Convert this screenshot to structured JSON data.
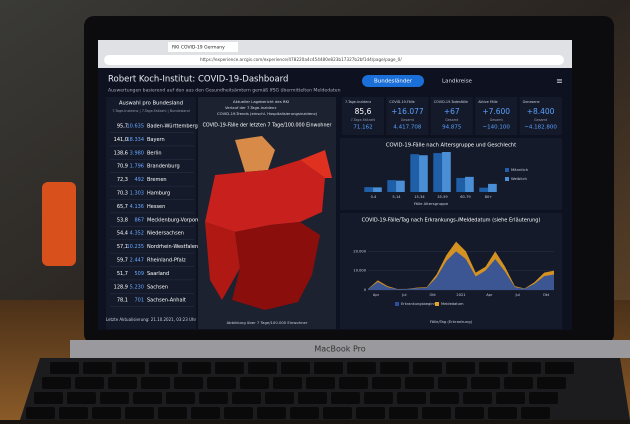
{
  "browser": {
    "tab": "RKI COVID-19 Germany",
    "url": "https://experience.arcgis.com/experience/478220a4c454480e823b17327b2bf1d4/page/page_0/"
  },
  "header": {
    "title": "Robert Koch-Institut: COVID-19-Dashboard",
    "subtitle": "Auswertungen basierend auf den aus den Gesundheitsämtern gemäß IfSG übermittelten Meldedaten",
    "buttons": [
      "Bundesländer",
      "Landkreise"
    ]
  },
  "states": {
    "title": "Auswahl pro Bundesland",
    "subtitle": "7-Tage-Inzidenz | 7-Tage-Fallzahl | Bundesland",
    "rows": [
      [
        "95,7",
        "10.635",
        "Baden-Württemberg"
      ],
      [
        "141,0",
        "18.334",
        "Bayern"
      ],
      [
        "138,6",
        "3.980",
        "Berlin"
      ],
      [
        "70,9",
        "1.796",
        "Brandenburg"
      ],
      [
        "72,3",
        "492",
        "Bremen"
      ],
      [
        "70,3",
        "1.303",
        "Hamburg"
      ],
      [
        "65,7",
        "4.136",
        "Hessen"
      ],
      [
        "53,8",
        "867",
        "Mecklenburg-Vorpommern"
      ],
      [
        "54,4",
        "4.352",
        "Niedersachsen"
      ],
      [
        "57,1",
        "10.235",
        "Nordrhein-Westfalen"
      ],
      [
        "59,7",
        "2.447",
        "Rheinland-Pfalz"
      ],
      [
        "51,7",
        "509",
        "Saarland"
      ],
      [
        "128,9",
        "5.230",
        "Sachsen"
      ],
      [
        "78,1",
        "701",
        "Sachsen-Anhalt"
      ]
    ],
    "footer": "Letzte Aktualisierung: 21.10.2021, 03:23 Uhr"
  },
  "map": {
    "options": [
      "Aktueller Lagebericht des RKI",
      "Verlauf der 7-Tage-Inzidenz",
      "COVID-19-Trends (einschl. Hospitalisierungsinzidenz)"
    ],
    "title": "COVID-19-Fälle der letzten 7 Tage/100.000 Einwohner",
    "footer": "Abbildung über 7 Tage/100.000 Einwohner"
  },
  "kpis": [
    {
      "label": "7-Tage-Inzidenz",
      "value": "85,6",
      "sub": "7-Tage-Fallzahl",
      "total": "71.162"
    },
    {
      "label": "COVID-19-Fälle",
      "value": "+16.077",
      "sub": "Gesamt",
      "total": "4.417.708"
    },
    {
      "label": "COVID-19-Todesfälle",
      "value": "+67",
      "sub": "Gesamt",
      "total": "94.875"
    },
    {
      "label": "Aktive Fälle",
      "value": "+7.600",
      "sub": "Gesamt",
      "total": "~140.100"
    },
    {
      "label": "Genesene",
      "value": "+8.400",
      "sub": "Gesamt",
      "total": "~4.182.800"
    }
  ],
  "chart_data": [
    {
      "type": "bar",
      "title": "COVID-19-Fälle nach Altersgruppe und Geschlecht",
      "x_label": "Fälle Altersgruppe",
      "categories": [
        "0-4",
        "5-14",
        "15-34",
        "35-59",
        "60-79",
        "80+"
      ],
      "series": [
        {
          "name": "Männlich",
          "color": "#1f5fa8",
          "values": [
            90000,
            220000,
            700000,
            720000,
            260000,
            80000
          ]
        },
        {
          "name": "Weiblich",
          "color": "#4a8fd6",
          "values": [
            85000,
            210000,
            680000,
            740000,
            280000,
            150000
          ]
        }
      ]
    },
    {
      "type": "area",
      "title": "COVID-19-Fälle/Tag nach Erkrankungs-/Meldedatum (siehe Erläuterung)",
      "x_label": "Fälle/Tag (Erkrankung)",
      "x_labels": [
        "Apr",
        "Jul",
        "Okt",
        "2021",
        "Apr",
        "Jul",
        "Okt"
      ],
      "ylim": [
        0,
        30000
      ],
      "yticks": [
        0,
        {
          "value": 10000,
          "label": "10.000"
        },
        {
          "value": 20000,
          "label": "20.000"
        }
      ],
      "series": [
        {
          "name": "Meldedatum",
          "color": "#e8a020",
          "values": [
            500,
            5000,
            2000,
            500,
            600,
            1200,
            1500,
            8000,
            18000,
            25000,
            20000,
            9000,
            12000,
            20000,
            12000,
            2000,
            800,
            4000,
            9000,
            10000
          ]
        },
        {
          "name": "Erkrankungsbeginn",
          "color": "#2b4fa0",
          "values": [
            400,
            4200,
            1500,
            400,
            500,
            900,
            1200,
            6500,
            15000,
            20000,
            16000,
            7000,
            10000,
            16000,
            9500,
            1500,
            600,
            3200,
            7200,
            8000
          ]
        }
      ]
    }
  ],
  "laptop": "MacBook Pro"
}
